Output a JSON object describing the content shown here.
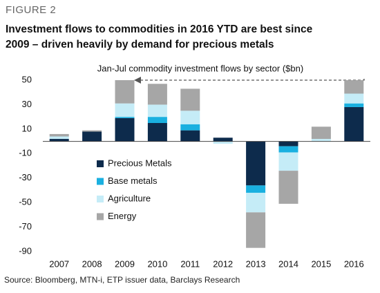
{
  "figure_label": "FIGURE 2",
  "source": "Source: Bloomberg, MTN-i, ETP issuer data, Barclays Research",
  "chart_data": {
    "type": "bar",
    "stacked": true,
    "title": [
      "Investment flows to commodities in 2016 YTD are best since",
      "2009 – driven heavily by demand for precious metals"
    ],
    "annotation": "Jan-Jul commodity investment flows by sector ($bn)",
    "categories": [
      "2007",
      "2008",
      "2009",
      "2010",
      "2011",
      "2012",
      "2013",
      "2014",
      "2015",
      "2016"
    ],
    "series": [
      {
        "name": "Precious Metals",
        "color": "#0d2b4c",
        "values": [
          2,
          8,
          19,
          15,
          9,
          3,
          -36,
          -4,
          0,
          28
        ]
      },
      {
        "name": "Base metals",
        "color": "#1ab0e0",
        "values": [
          0,
          0,
          1,
          5,
          5,
          0,
          -6,
          -5,
          0,
          3
        ]
      },
      {
        "name": "Agriculture",
        "color": "#c5ecf7",
        "values": [
          2,
          0,
          11,
          10,
          11,
          -2,
          -16,
          -15,
          2,
          8
        ]
      },
      {
        "name": "Energy",
        "color": "#a6a6a6",
        "values": [
          2,
          1,
          19,
          17,
          18,
          0,
          -29,
          -27,
          10,
          11
        ]
      }
    ],
    "ylim": [
      -90,
      50
    ],
    "yticks": [
      50,
      30,
      10,
      -10,
      -30,
      -50,
      -70,
      -90
    ],
    "grid": false
  }
}
